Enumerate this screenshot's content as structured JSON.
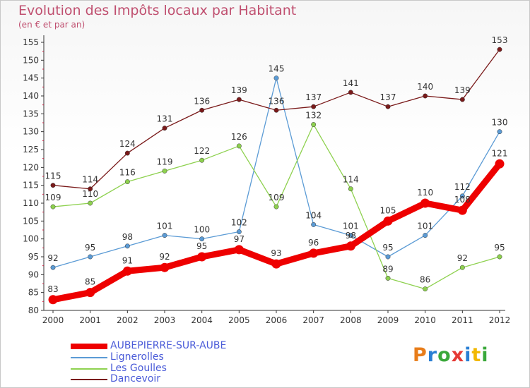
{
  "title": "Evolution des Impôts locaux par Habitant",
  "subtitle": "(en € et par an)",
  "brand": {
    "letters": [
      "P",
      "r",
      "o",
      "x",
      "i",
      "t",
      "i"
    ],
    "colors": [
      "#e87d1a",
      "#2a7fd4",
      "#3aa83a",
      "#e53935",
      "#2a7fd4",
      "#f2b800",
      "#3aa83a"
    ]
  },
  "chart_data": {
    "type": "line",
    "title": "Evolution des Impôts locaux par Habitant",
    "subtitle": "(en € et par an)",
    "xlabel": "",
    "ylabel": "",
    "x": [
      2000,
      2001,
      2002,
      2003,
      2004,
      2005,
      2006,
      2007,
      2008,
      2009,
      2010,
      2011,
      2012
    ],
    "ylim": [
      80,
      155
    ],
    "yticks": [
      80,
      85,
      90,
      95,
      100,
      105,
      110,
      115,
      120,
      125,
      130,
      135,
      140,
      145,
      150,
      155
    ],
    "grid": false,
    "legend": "bottom-left",
    "series": [
      {
        "name": "AUBEPIERRE-SUR-AUBE",
        "color": "#ee0000",
        "emphasis": true,
        "values": [
          83,
          85,
          91,
          92,
          95,
          97,
          93,
          96,
          98,
          105,
          110,
          108,
          121
        ]
      },
      {
        "name": "Lignerolles",
        "color": "#5b9bd5",
        "emphasis": false,
        "values": [
          92,
          95,
          98,
          101,
          100,
          102,
          145,
          104,
          101,
          95,
          101,
          112,
          130
        ]
      },
      {
        "name": "Les Goulles",
        "color": "#8ed14f",
        "emphasis": false,
        "values": [
          109,
          110,
          116,
          119,
          122,
          126,
          109,
          132,
          114,
          89,
          86,
          92,
          95
        ]
      },
      {
        "name": "Dancevoir",
        "color": "#7a1a1a",
        "emphasis": false,
        "values": [
          115,
          114,
          124,
          131,
          136,
          139,
          136,
          137,
          141,
          137,
          140,
          139,
          153
        ]
      }
    ]
  }
}
